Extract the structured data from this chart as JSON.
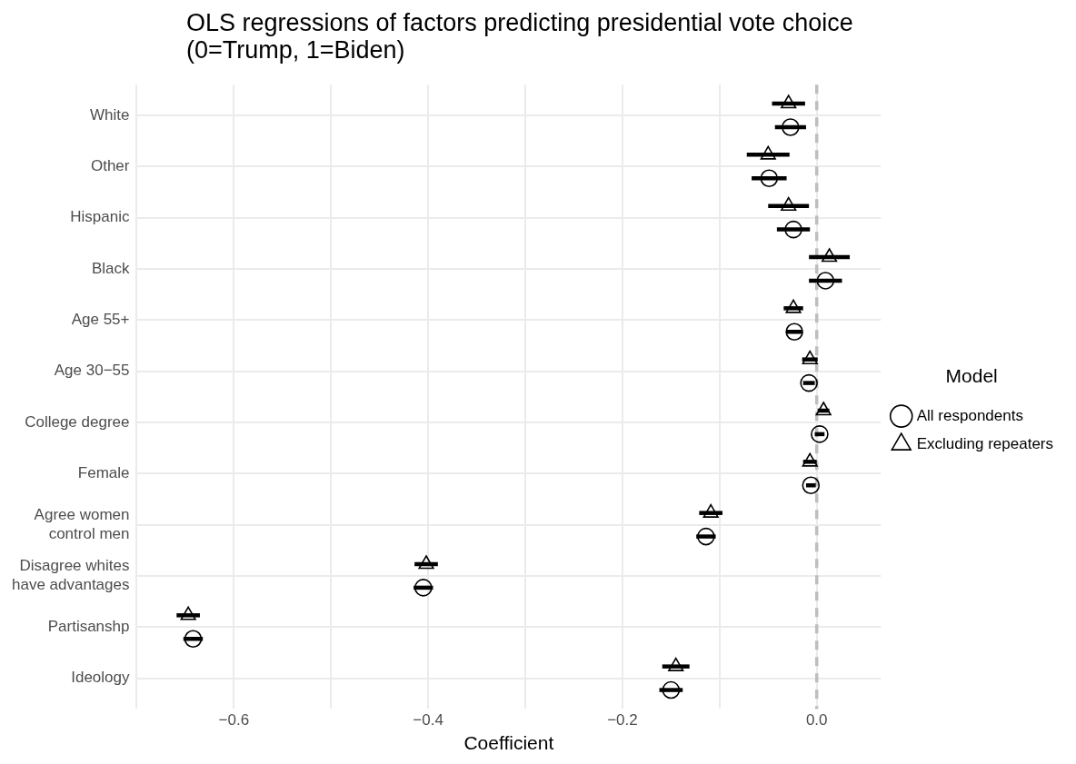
{
  "chart_data": {
    "type": "scatter",
    "orientation": "horizontal",
    "title": "OLS regressions of factors predicting presidential vote choice (0=Trump, 1=Biden)",
    "xlabel": "Coefficient",
    "legend_title": "Model",
    "legend": "right",
    "grid": true,
    "categories": [
      "White",
      "Other",
      "Hispanic",
      "Black",
      "Age 55+",
      "Age 30−55",
      "College degree",
      "Female",
      "Agree women control men",
      "Disagree whites have advantages",
      "Partisanshp",
      "Ideology"
    ],
    "xlim": [
      -0.7,
      0.066
    ],
    "xticks": [
      {
        "value": -0.7,
        "label": null
      },
      {
        "value": -0.6,
        "label": "−0.6"
      },
      {
        "value": -0.5,
        "label": null
      },
      {
        "value": -0.4,
        "label": "−0.4"
      },
      {
        "value": -0.3,
        "label": null
      },
      {
        "value": -0.2,
        "label": "−0.2"
      },
      {
        "value": -0.1,
        "label": null
      },
      {
        "value": 0,
        "label": "0.0"
      }
    ],
    "ref_lines": [
      {
        "axis": "x",
        "value": 0,
        "color": "#bebebe",
        "line_style": "dashed"
      }
    ],
    "series": [
      {
        "name": "All respondents",
        "color": "#000000",
        "marker": "circle",
        "values": [
          -0.027,
          -0.049,
          -0.024,
          0.009,
          -0.023,
          -0.008,
          0.003,
          -0.006,
          -0.114,
          -0.405,
          -0.642,
          -0.15
        ],
        "errors": [
          0.016,
          0.018,
          0.017,
          0.017,
          0.008,
          0.006,
          0.005,
          0.005,
          0.01,
          0.01,
          0.01,
          0.012
        ]
      },
      {
        "name": "Excluding repeaters",
        "color": "#000000",
        "marker": "triangle",
        "values": [
          -0.029,
          -0.05,
          -0.029,
          0.013,
          -0.024,
          -0.007,
          0.007,
          -0.007,
          -0.109,
          -0.402,
          -0.647,
          -0.145
        ],
        "errors": [
          0.017,
          0.022,
          0.021,
          0.021,
          0.01,
          0.008,
          0.006,
          0.007,
          0.012,
          0.012,
          0.012,
          0.014
        ]
      }
    ]
  }
}
